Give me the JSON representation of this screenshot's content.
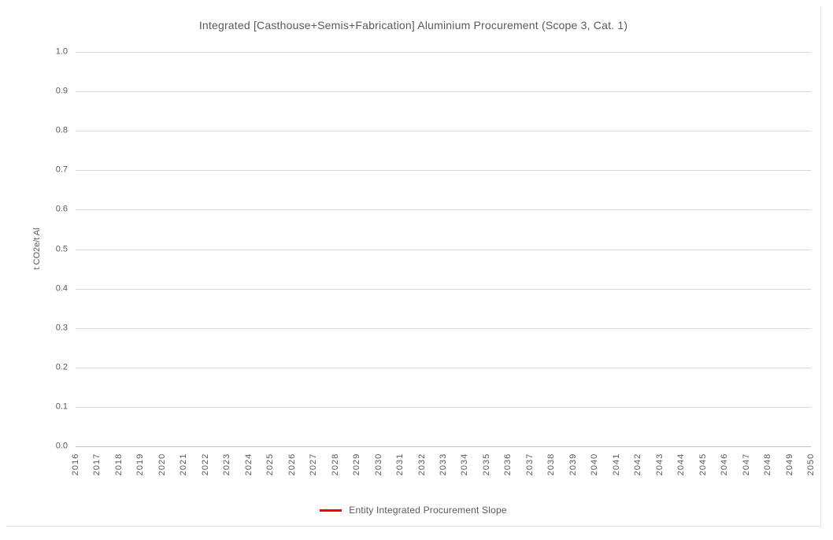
{
  "chart_data": {
    "type": "line",
    "title": "Integrated [Casthouse+Semis+Fabrication] Aluminium Procurement (Scope 3, Cat. 1)",
    "xlabel": "",
    "ylabel": "t CO2e/t Al",
    "ylim": [
      0.0,
      1.0
    ],
    "y_ticks": [
      "1.0",
      "0.9",
      "0.8",
      "0.7",
      "0.6",
      "0.5",
      "0.4",
      "0.3",
      "0.2",
      "0.1",
      "0.0"
    ],
    "categories": [
      "2016",
      "2017",
      "2018",
      "2019",
      "2020",
      "2021",
      "2022",
      "2023",
      "2024",
      "2025",
      "2026",
      "2027",
      "2028",
      "2029",
      "2030",
      "2031",
      "2032",
      "2033",
      "2034",
      "2035",
      "2036",
      "2037",
      "2038",
      "2039",
      "2040",
      "2041",
      "2042",
      "2043",
      "2044",
      "2045",
      "2046",
      "2047",
      "2048",
      "2049",
      "2050"
    ],
    "grid": "horizontal",
    "legend_position": "bottom",
    "series": [
      {
        "name": "Entity Integrated Procurement Slope",
        "color": "#ff0000",
        "values": []
      }
    ]
  },
  "colors": {
    "text": "#595959",
    "gridline": "#d9d9d9",
    "axis_line": "#bfbfbf",
    "series_red": "#ff0000",
    "chart_border": "#e2e2e2",
    "background": "#ffffff"
  }
}
